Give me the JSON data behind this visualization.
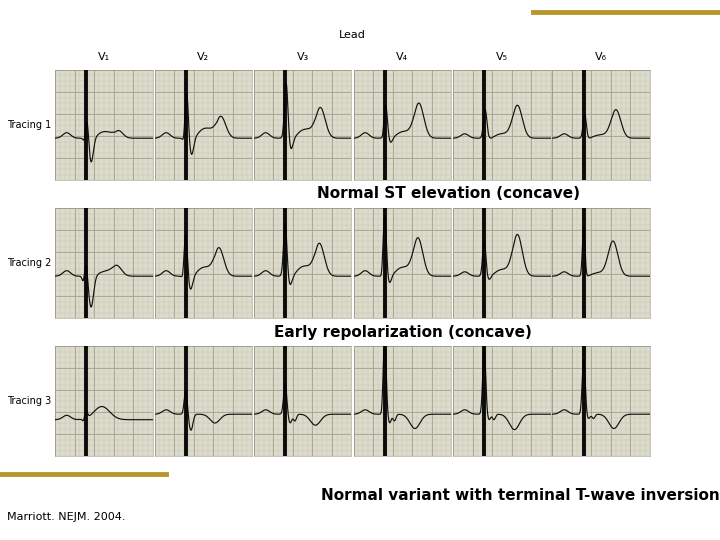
{
  "title_lead": "Lead",
  "lead_labels": [
    "V₁",
    "V₂",
    "V₃",
    "V₄",
    "V₅",
    "V₆"
  ],
  "tracing_labels": [
    "Tracing 1",
    "Tracing 2",
    "Tracing 3"
  ],
  "annotation1": "Normal ST elevation (concave)",
  "annotation2": "Early repolarization (concave)",
  "annotation3": "Normal variant with terminal T-wave inversion",
  "citation": "Marriott. NEJM. 2004.",
  "gold_line_color": "#B8962E",
  "bg_color": "#FFFFFF",
  "ecg_bg_color": "#DCDCCC",
  "ecg_grid_major_color": "#A8A090",
  "ecg_grid_minor_color": "#C4BCA8",
  "ecg_line_color": "#111111",
  "annotation_font_size": 11,
  "citation_font_size": 8,
  "lead_label_font_size": 8,
  "tracing_label_font_size": 7
}
